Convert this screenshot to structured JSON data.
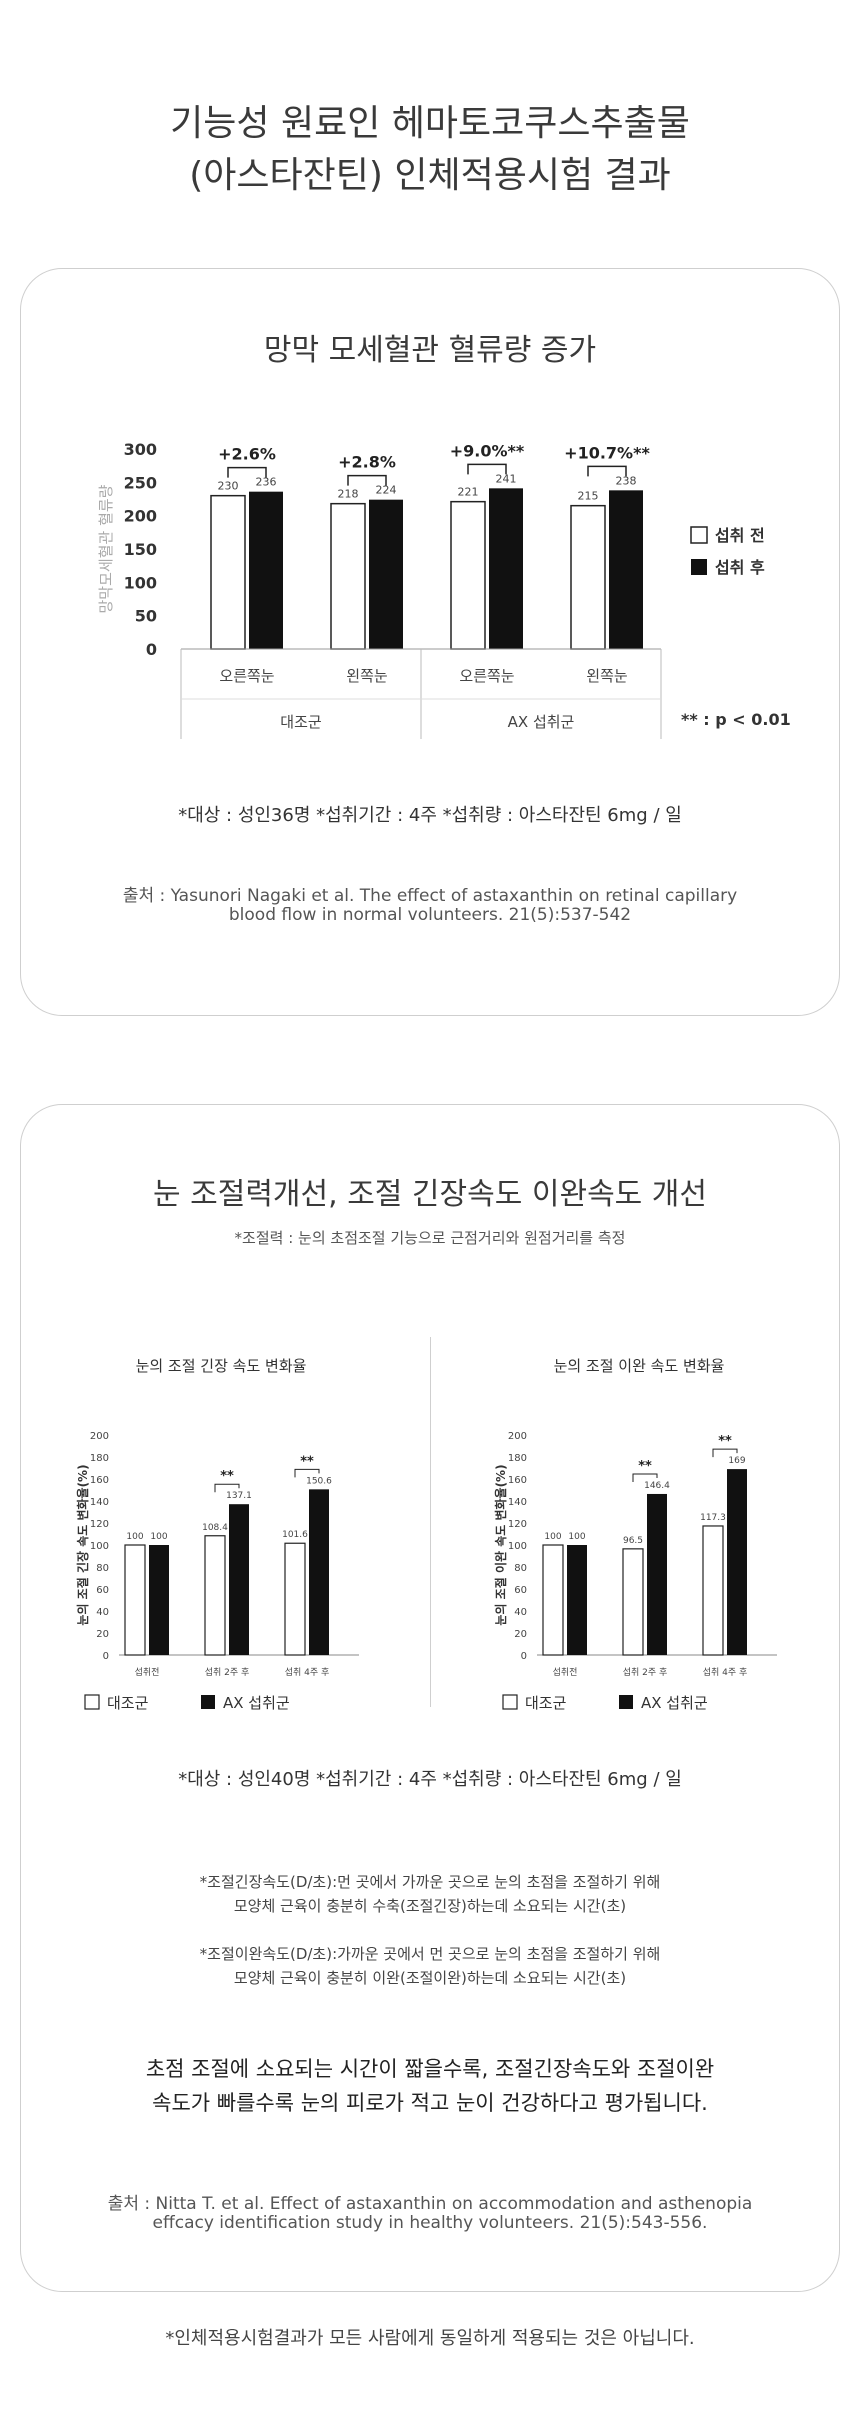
{
  "title": {
    "line1": "기능성 원료인 헤마토코쿠스추출물",
    "line2": "(아스타잔틴) 인체적용시험 결과"
  },
  "study1": {
    "title": "망막 모세혈관 혈류량 증가",
    "subjects": "*대상 : 성인36명   *섭취기간 : 4주   *섭취량 : 아스타잔틴 6mg / 일",
    "source_line1": "출처 : Yasunori Nagaki et al. The effect of astaxanthin on retinal capillary",
    "source_line2": "blood flow in normal volunteers. 21(5):537-542"
  },
  "study2": {
    "title": "눈 조절력개선, 조절 긴장속도 이완속도 개선",
    "subtitle": "*조절력 : 눈의 초점조절 기능으로 근점거리와 원점거리를 측정",
    "subjects": "*대상 : 성인40명   *섭취기간 : 4주   *섭취량 : 아스타잔틴 6mg / 일",
    "def1_line1": "*조절긴장속도(D/초):먼 곳에서 가까운 곳으로 눈의 초점을 조절하기 위해",
    "def1_line2": "모양체 근육이 충분히 수축(조절긴장)하는데 소요되는 시간(초)",
    "def2_line1": "*조절이완속도(D/초):가까운 곳에서 먼 곳으로 눈의 초점을 조절하기 위해",
    "def2_line2": "모양체 근육이 충분히 이완(조절이완)하는데 소요되는 시간(초)",
    "summary_line1": "초점 조절에 소요되는 시간이 짧을수록, 조절긴장속도와 조절이완",
    "summary_line2": "속도가 빠를수록 눈의 피로가 적고 눈이 건강하다고 평가됩니다.",
    "source_line1": "출처 : Nitta T. et al. Effect of astaxanthin on accommodation and asthenopia",
    "source_line2": "effcacy identification study in healthy volunteers. 21(5):543-556."
  },
  "disclaimer": "*인체적용시험결과가 모든 사람에게 동일하게 적용되는 것은 아닙니다.",
  "chart_data": [
    {
      "type": "bar",
      "ylabel": "망막모세혈관 혈류량",
      "ylim": [
        0,
        300
      ],
      "yticks": [
        "0",
        "50",
        "100",
        "150",
        "200",
        "250",
        "300"
      ],
      "categories": [
        "오른쪽눈",
        "왼쪽눈",
        "오른쪽눈",
        "왼쪽눈"
      ],
      "groups": [
        "대조군",
        "AX 섭취군"
      ],
      "series": [
        {
          "name": "섭취 전",
          "values": [
            230,
            218,
            221,
            215
          ],
          "labels": [
            "230",
            "218",
            "221",
            "215"
          ],
          "color": "#ffffff"
        },
        {
          "name": "섭취 후",
          "values": [
            236,
            224,
            241,
            238
          ],
          "labels": [
            "236",
            "224",
            "241",
            "238"
          ],
          "color": "#111111"
        }
      ],
      "annotations": [
        "+2.6%",
        "+2.8%",
        "+9.0%**",
        "+10.7%**"
      ],
      "footnote": "** : p < 0.01",
      "legend": "right"
    },
    {
      "type": "bar",
      "title": "눈의 조절 긴장 속도 변화율",
      "ylabel": "눈의 조절 긴장 속도 변화율(%)",
      "ylim": [
        0,
        200
      ],
      "yticks": [
        "0",
        "20",
        "40",
        "60",
        "80",
        "100",
        "120",
        "140",
        "160",
        "180",
        "200"
      ],
      "categories": [
        "섭취전",
        "섭취 2주 후",
        "섭취 4주 후"
      ],
      "series": [
        {
          "name": "대조군",
          "values": [
            100,
            108.4,
            101.6
          ],
          "labels": [
            "100",
            "108.4",
            "101.6"
          ],
          "color": "#ffffff"
        },
        {
          "name": "AX 섭취군",
          "values": [
            100,
            137.1,
            150.6
          ],
          "labels": [
            "100",
            "137.1",
            "150.6"
          ],
          "color": "#111111"
        }
      ],
      "significance": [
        "",
        "**",
        "**"
      ],
      "legend": "bottom"
    },
    {
      "type": "bar",
      "title": "눈의 조절 이완 속도 변화율",
      "ylabel": "눈의 조절 이완 속도 변화율(%)",
      "ylim": [
        0,
        200
      ],
      "yticks": [
        "0",
        "20",
        "40",
        "60",
        "80",
        "100",
        "120",
        "140",
        "160",
        "180",
        "200"
      ],
      "categories": [
        "섭취전",
        "섭취 2주 후",
        "섭취 4주 후"
      ],
      "series": [
        {
          "name": "대조군",
          "values": [
            100,
            96.5,
            117.3
          ],
          "labels": [
            "100",
            "96.5",
            "117.3"
          ],
          "color": "#ffffff"
        },
        {
          "name": "AX 섭취군",
          "values": [
            100,
            146.4,
            169
          ],
          "labels": [
            "100",
            "146.4",
            "169"
          ],
          "color": "#111111"
        }
      ],
      "significance": [
        "",
        "**",
        "**"
      ],
      "legend": "bottom"
    }
  ]
}
